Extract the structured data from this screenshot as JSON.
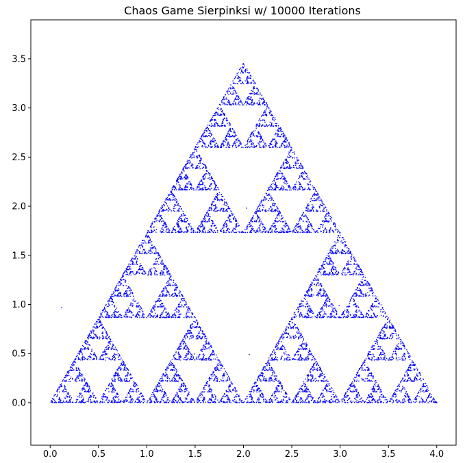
{
  "chart_data": {
    "type": "scatter",
    "title": "Chaos Game Sierpinksi w/ 10000 Iterations",
    "xlabel": "",
    "ylabel": "",
    "xlim": [
      -0.2,
      4.2
    ],
    "ylim": [
      -0.433,
      3.897
    ],
    "xticks": [
      0.0,
      0.5,
      1.0,
      1.5,
      2.0,
      2.5,
      3.0,
      3.5,
      4.0
    ],
    "xtick_labels": [
      "0.0",
      "0.5",
      "1.0",
      "1.5",
      "2.0",
      "2.5",
      "3.0",
      "3.5",
      "4.0"
    ],
    "yticks": [
      0.0,
      0.5,
      1.0,
      1.5,
      2.0,
      2.5,
      3.0,
      3.5
    ],
    "ytick_labels": [
      "0.0",
      "0.5",
      "1.0",
      "1.5",
      "2.0",
      "2.5",
      "3.0",
      "3.5"
    ],
    "grid": false,
    "point_color": "#0000ff",
    "iterations": 10000,
    "vertices": [
      [
        0.0,
        0.0
      ],
      [
        4.0,
        0.0
      ],
      [
        2.0,
        3.464
      ]
    ],
    "start_point": [
      0.12,
      0.97
    ],
    "early_points": [
      [
        2.06,
        0.49
      ],
      [
        2.03,
        1.98
      ],
      [
        2.99,
        0.99
      ]
    ]
  }
}
